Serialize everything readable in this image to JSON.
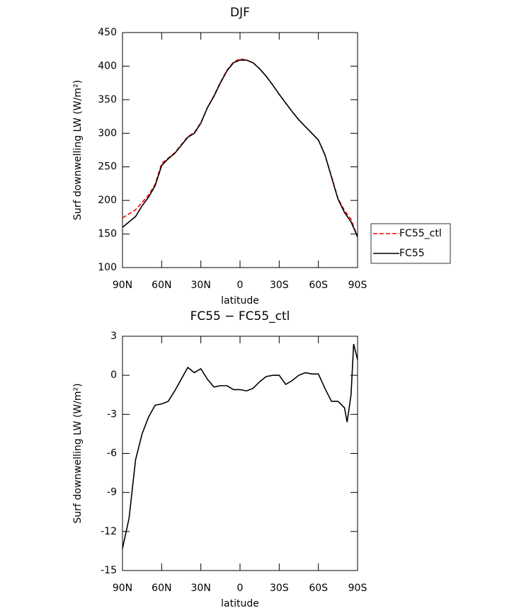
{
  "chart_data": [
    {
      "type": "line",
      "title": "DJF",
      "xlabel": "latitude",
      "ylabel": "Surf downwelling LW (W/m²)",
      "x": [
        90,
        85,
        80,
        75,
        70,
        65,
        60,
        55,
        50,
        45,
        40,
        35,
        30,
        25,
        20,
        15,
        10,
        5,
        0,
        -5,
        -10,
        -15,
        -20,
        -25,
        -30,
        -35,
        -40,
        -45,
        -50,
        -55,
        -60,
        -65,
        -70,
        -75,
        -80,
        -85,
        -90
      ],
      "series": [
        {
          "name": "FC55_ctl",
          "color": "#ff0000",
          "dashed": true,
          "values": [
            174,
            180,
            186,
            197,
            208,
            224,
            255,
            263,
            271,
            283,
            295,
            301,
            316,
            338,
            356,
            376,
            394,
            406,
            411,
            409,
            405,
            396,
            385,
            372,
            358,
            345,
            332,
            320,
            310,
            300,
            290,
            268,
            236,
            203,
            185,
            172,
            145
          ]
        },
        {
          "name": "FC55",
          "color": "#000000",
          "dashed": false,
          "values": [
            160,
            168,
            176,
            192,
            205,
            222,
            252,
            262,
            270,
            282,
            294,
            300,
            315,
            338,
            355,
            375,
            393,
            405,
            409,
            409,
            405,
            396,
            385,
            372,
            358,
            345,
            332,
            320,
            310,
            300,
            290,
            268,
            235,
            202,
            182,
            168,
            146
          ]
        }
      ],
      "xlim": [
        90,
        -90
      ],
      "xticks": [
        {
          "value": 90,
          "label": "90N"
        },
        {
          "value": 60,
          "label": "60N"
        },
        {
          "value": 30,
          "label": "30N"
        },
        0,
        {
          "value": -30,
          "label": "30S"
        },
        {
          "value": -60,
          "label": "60S"
        },
        {
          "value": -90,
          "label": "90S"
        }
      ],
      "ylim": [
        100,
        450
      ],
      "yticks": [
        100,
        150,
        200,
        250,
        300,
        350,
        400,
        450
      ],
      "legend": "outside-right"
    },
    {
      "type": "line",
      "title": "FC55 − FC55_ctl",
      "xlabel": "latitude",
      "ylabel": "Surf downwelling LW (W/m²)",
      "x": [
        90,
        85,
        80,
        75,
        70,
        65,
        60,
        55,
        50,
        45,
        40,
        35,
        30,
        25,
        20,
        15,
        10,
        5,
        0,
        -5,
        -10,
        -15,
        -20,
        -25,
        -30,
        -35,
        -40,
        -45,
        -50,
        -55,
        -60,
        -65,
        -70,
        -75,
        -80,
        -82,
        -85,
        -87,
        -90
      ],
      "series": [
        {
          "color": "#000000",
          "dashed": false,
          "values": [
            -13.3,
            -11,
            -6.5,
            -4.5,
            -3.2,
            -2.3,
            -2.2,
            -2.0,
            -1.2,
            -0.3,
            0.6,
            0.2,
            0.5,
            -0.3,
            -0.9,
            -0.8,
            -0.8,
            -1.1,
            -1.1,
            -1.2,
            -1.0,
            -0.5,
            -0.1,
            0.0,
            0.0,
            -0.7,
            -0.4,
            0.0,
            0.2,
            0.1,
            0.1,
            -1.0,
            -2.0,
            -2.0,
            -2.5,
            -3.6,
            -1.5,
            2.4,
            1.2
          ]
        }
      ],
      "xlim": [
        90,
        -90
      ],
      "xticks": [
        {
          "value": 90,
          "label": "90N"
        },
        {
          "value": 60,
          "label": "60N"
        },
        {
          "value": 30,
          "label": "30N"
        },
        0,
        {
          "value": -30,
          "label": "30S"
        },
        {
          "value": -60,
          "label": "60S"
        },
        {
          "value": -90,
          "label": "90S"
        }
      ],
      "ylim": [
        -15,
        3
      ],
      "yticks": [
        -15,
        -12,
        -9,
        -6,
        -3,
        0,
        3
      ]
    }
  ]
}
